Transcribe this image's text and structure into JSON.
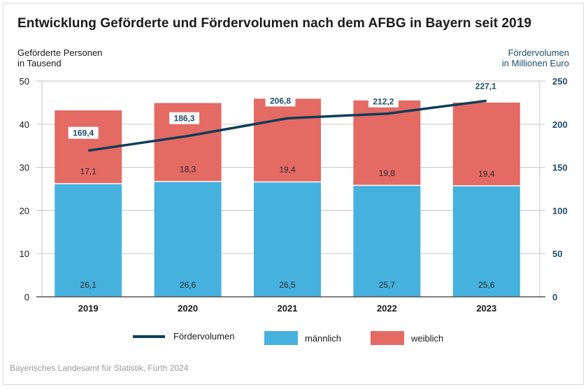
{
  "title": "Entwicklung Geförderte und Fördervolumen nach dem AFBG in Bayern seit 2019",
  "left_axis_label_line1": "Geförderte Personen",
  "left_axis_label_line2": "in Tausend",
  "right_axis_label_line1": "Fördervolumen",
  "right_axis_label_line2": "in Millionen Euro",
  "source": "Bayerisches Landesamt für Statistik, Fürth 2024",
  "colors": {
    "maennlich": "#47b1de",
    "weiblich": "#e46a64",
    "line": "#0f3d58",
    "right_axis_text": "#1f4e6b",
    "grid": "#cfcfcf"
  },
  "legend": [
    {
      "label": "Fördervolumen",
      "type": "line"
    },
    {
      "label": "männlich",
      "type": "box"
    },
    {
      "label": "weiblich",
      "type": "box"
    }
  ],
  "chart_data": {
    "type": "bar",
    "stacked": true,
    "title": "Entwicklung Geförderte und Fördervolumen nach dem AFBG in Bayern seit 2019",
    "categories": [
      "2019",
      "2020",
      "2021",
      "2022",
      "2023"
    ],
    "series": [
      {
        "name": "männlich",
        "axis": "left",
        "type": "bar",
        "values": [
          26.1,
          26.6,
          26.5,
          25.7,
          25.6
        ],
        "labels": [
          "26,1",
          "26,6",
          "26,5",
          "25,7",
          "25,6"
        ]
      },
      {
        "name": "weiblich",
        "axis": "left",
        "type": "bar",
        "values": [
          17.1,
          18.3,
          19.4,
          19.8,
          19.4
        ],
        "labels": [
          "17,1",
          "18,3",
          "19,4",
          "19,8",
          "19,4"
        ]
      },
      {
        "name": "Fördervolumen",
        "axis": "right",
        "type": "line",
        "values": [
          169.4,
          186.3,
          206.8,
          212.2,
          227.1
        ],
        "labels": [
          "169,4",
          "186,3",
          "206,8",
          "212,2",
          "227,1"
        ]
      }
    ],
    "ylabel_left": "Geförderte Personen in Tausend",
    "ylabel_right": "Fördervolumen in Millionen Euro",
    "ylim_left": [
      0,
      50
    ],
    "ylim_right": [
      0,
      250
    ],
    "yticks_left": [
      0,
      10,
      20,
      30,
      40,
      50
    ],
    "yticks_right": [
      0,
      50,
      100,
      150,
      200,
      250
    ],
    "grid": true,
    "legend_position": "bottom"
  }
}
